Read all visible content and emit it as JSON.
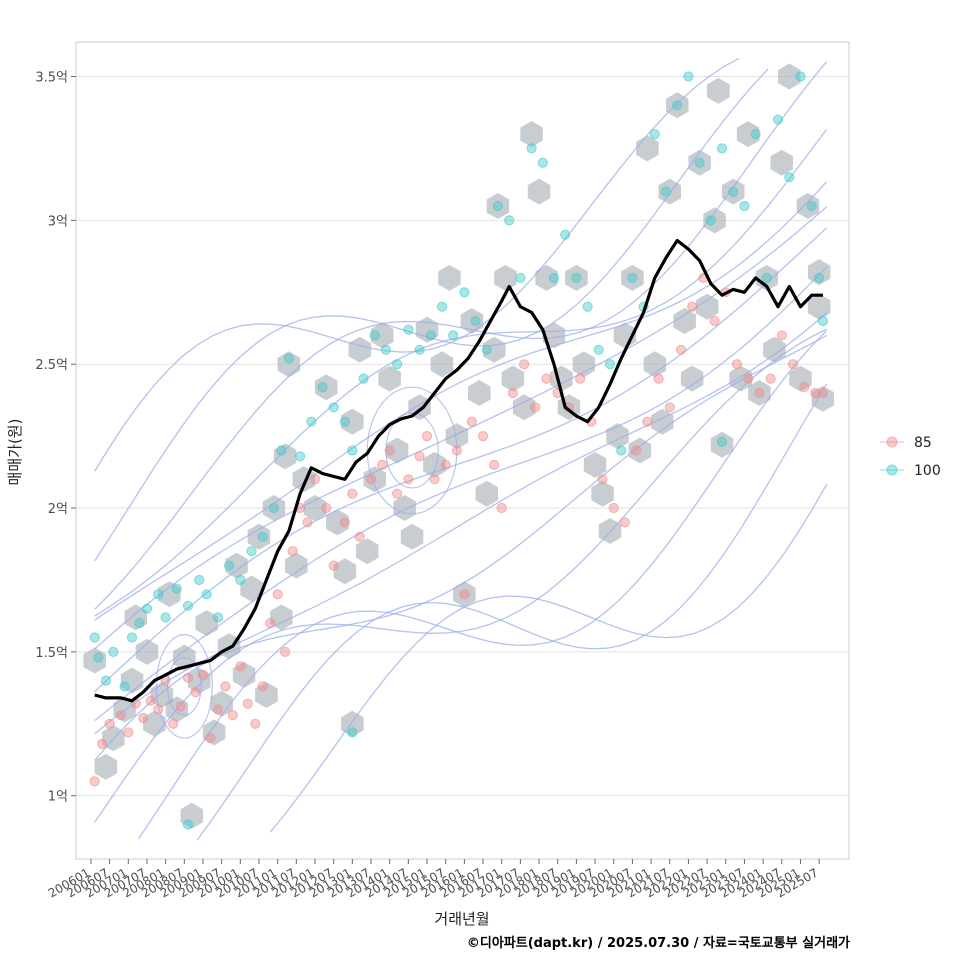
{
  "chart_data": {
    "type": "scatter",
    "xlabel": "거래년월",
    "ylabel": "매매가(원)",
    "caption": "©디아파트(dapt.kr) / 2025.07.30 / 자료=국토교통부 실거래가",
    "x_ticks": [
      "200601",
      "200607",
      "200701",
      "200707",
      "200801",
      "200807",
      "200901",
      "200907",
      "201001",
      "201007",
      "201101",
      "201107",
      "201201",
      "201207",
      "201301",
      "201307",
      "201401",
      "201407",
      "201501",
      "201507",
      "201601",
      "201607",
      "201701",
      "201707",
      "201801",
      "201807",
      "201901",
      "201907",
      "202001",
      "202007",
      "202101",
      "202107",
      "202201",
      "202207",
      "202301",
      "202307",
      "202401",
      "202407",
      "202501",
      "202507"
    ],
    "y_ticks": [
      {
        "value": 1.0,
        "label": "1억"
      },
      {
        "value": 1.5,
        "label": "1.5억"
      },
      {
        "value": 2.0,
        "label": "2억"
      },
      {
        "value": 2.5,
        "label": "2.5억"
      },
      {
        "value": 3.0,
        "label": "3억"
      },
      {
        "value": 3.5,
        "label": "3.5억"
      }
    ],
    "ylim": [
      0.78,
      3.62
    ],
    "xlim": [
      2005.6,
      2026.3
    ],
    "grid": "horizontal",
    "legend_position": "right",
    "colors": {
      "s85": "#f08a8a",
      "s100": "#3ec9c9",
      "trend": "#000000",
      "hex": "#a6aeb6",
      "contour": "#9aaee8"
    },
    "series": [
      {
        "name": "85",
        "points": [
          [
            2006.1,
            1.05
          ],
          [
            2006.3,
            1.18
          ],
          [
            2006.5,
            1.25
          ],
          [
            2006.8,
            1.28
          ],
          [
            2007.0,
            1.22
          ],
          [
            2007.2,
            1.32
          ],
          [
            2007.4,
            1.27
          ],
          [
            2007.6,
            1.33
          ],
          [
            2007.8,
            1.3
          ],
          [
            2008.0,
            1.4
          ],
          [
            2008.2,
            1.25
          ],
          [
            2008.4,
            1.31
          ],
          [
            2008.6,
            1.41
          ],
          [
            2008.8,
            1.36
          ],
          [
            2009.0,
            1.42
          ],
          [
            2009.2,
            1.2
          ],
          [
            2009.4,
            1.3
          ],
          [
            2009.6,
            1.38
          ],
          [
            2009.8,
            1.28
          ],
          [
            2010.0,
            1.45
          ],
          [
            2010.2,
            1.32
          ],
          [
            2010.4,
            1.25
          ],
          [
            2010.6,
            1.38
          ],
          [
            2010.8,
            1.6
          ],
          [
            2011.0,
            1.7
          ],
          [
            2011.2,
            1.5
          ],
          [
            2011.4,
            1.85
          ],
          [
            2011.6,
            2.0
          ],
          [
            2011.8,
            1.95
          ],
          [
            2012.0,
            2.1
          ],
          [
            2012.3,
            2.0
          ],
          [
            2012.5,
            1.8
          ],
          [
            2012.8,
            1.95
          ],
          [
            2013.0,
            2.05
          ],
          [
            2013.2,
            1.9
          ],
          [
            2013.5,
            2.1
          ],
          [
            2013.8,
            2.15
          ],
          [
            2014.0,
            2.2
          ],
          [
            2014.2,
            2.05
          ],
          [
            2014.5,
            2.1
          ],
          [
            2014.8,
            2.18
          ],
          [
            2015.0,
            2.25
          ],
          [
            2015.2,
            2.1
          ],
          [
            2015.5,
            2.15
          ],
          [
            2015.8,
            2.2
          ],
          [
            2016.0,
            1.7
          ],
          [
            2016.2,
            2.3
          ],
          [
            2016.5,
            2.25
          ],
          [
            2016.8,
            2.15
          ],
          [
            2017.0,
            2.0
          ],
          [
            2017.3,
            2.4
          ],
          [
            2017.6,
            2.5
          ],
          [
            2017.9,
            2.35
          ],
          [
            2018.2,
            2.45
          ],
          [
            2018.5,
            2.4
          ],
          [
            2018.8,
            2.35
          ],
          [
            2019.1,
            2.45
          ],
          [
            2019.4,
            2.3
          ],
          [
            2019.7,
            2.1
          ],
          [
            2020.0,
            2.0
          ],
          [
            2020.3,
            1.95
          ],
          [
            2020.6,
            2.2
          ],
          [
            2020.9,
            2.3
          ],
          [
            2021.2,
            2.45
          ],
          [
            2021.5,
            2.35
          ],
          [
            2021.8,
            2.55
          ],
          [
            2022.1,
            2.7
          ],
          [
            2022.4,
            2.8
          ],
          [
            2022.7,
            2.65
          ],
          [
            2023.0,
            2.75
          ],
          [
            2023.3,
            2.5
          ],
          [
            2023.6,
            2.45
          ],
          [
            2023.9,
            2.4
          ],
          [
            2024.2,
            2.45
          ],
          [
            2024.5,
            2.6
          ],
          [
            2024.8,
            2.5
          ],
          [
            2025.1,
            2.42
          ],
          [
            2025.4,
            2.4
          ],
          [
            2025.6,
            2.4
          ]
        ]
      },
      {
        "name": "100",
        "points": [
          [
            2006.1,
            1.55
          ],
          [
            2006.2,
            1.48
          ],
          [
            2006.4,
            1.4
          ],
          [
            2006.6,
            1.5
          ],
          [
            2006.9,
            1.38
          ],
          [
            2007.1,
            1.55
          ],
          [
            2007.3,
            1.6
          ],
          [
            2007.5,
            1.65
          ],
          [
            2007.8,
            1.7
          ],
          [
            2008.0,
            1.62
          ],
          [
            2008.3,
            1.72
          ],
          [
            2008.6,
            1.66
          ],
          [
            2008.9,
            1.75
          ],
          [
            2009.1,
            1.7
          ],
          [
            2009.4,
            1.62
          ],
          [
            2009.7,
            1.8
          ],
          [
            2010.0,
            1.75
          ],
          [
            2010.3,
            1.85
          ],
          [
            2010.6,
            1.9
          ],
          [
            2010.9,
            2.0
          ],
          [
            2011.1,
            2.2
          ],
          [
            2011.3,
            2.52
          ],
          [
            2011.6,
            2.18
          ],
          [
            2011.9,
            2.3
          ],
          [
            2012.2,
            2.42
          ],
          [
            2012.5,
            2.35
          ],
          [
            2012.8,
            2.3
          ],
          [
            2013.0,
            2.2
          ],
          [
            2013.3,
            2.45
          ],
          [
            2013.6,
            2.6
          ],
          [
            2013.9,
            2.55
          ],
          [
            2014.2,
            2.5
          ],
          [
            2014.5,
            2.62
          ],
          [
            2014.8,
            2.55
          ],
          [
            2015.1,
            2.6
          ],
          [
            2015.4,
            2.7
          ],
          [
            2015.7,
            2.6
          ],
          [
            2016.0,
            2.75
          ],
          [
            2016.3,
            2.65
          ],
          [
            2016.6,
            2.55
          ],
          [
            2016.9,
            3.05
          ],
          [
            2017.2,
            3.0
          ],
          [
            2017.5,
            2.8
          ],
          [
            2017.8,
            3.25
          ],
          [
            2018.1,
            3.2
          ],
          [
            2018.4,
            2.8
          ],
          [
            2018.7,
            2.95
          ],
          [
            2019.0,
            2.8
          ],
          [
            2019.3,
            2.7
          ],
          [
            2019.6,
            2.55
          ],
          [
            2019.9,
            2.5
          ],
          [
            2020.2,
            2.2
          ],
          [
            2020.5,
            2.8
          ],
          [
            2020.8,
            2.7
          ],
          [
            2021.1,
            3.3
          ],
          [
            2021.4,
            3.1
          ],
          [
            2021.7,
            3.4
          ],
          [
            2022.0,
            3.5
          ],
          [
            2022.3,
            3.2
          ],
          [
            2022.6,
            3.0
          ],
          [
            2022.9,
            3.25
          ],
          [
            2023.2,
            3.1
          ],
          [
            2023.5,
            3.05
          ],
          [
            2023.8,
            3.3
          ],
          [
            2024.1,
            2.8
          ],
          [
            2024.4,
            3.35
          ],
          [
            2024.7,
            3.15
          ],
          [
            2025.0,
            3.5
          ],
          [
            2025.3,
            3.05
          ],
          [
            2025.5,
            2.8
          ],
          [
            2025.6,
            2.65
          ],
          [
            2013.0,
            1.22
          ],
          [
            2008.6,
            0.9
          ],
          [
            2022.9,
            2.23
          ]
        ]
      }
    ],
    "trend_line": [
      [
        2006.1,
        1.35
      ],
      [
        2006.4,
        1.34
      ],
      [
        2006.8,
        1.34
      ],
      [
        2007.1,
        1.33
      ],
      [
        2007.4,
        1.36
      ],
      [
        2007.7,
        1.4
      ],
      [
        2008.0,
        1.42
      ],
      [
        2008.3,
        1.44
      ],
      [
        2008.6,
        1.45
      ],
      [
        2008.9,
        1.46
      ],
      [
        2009.2,
        1.47
      ],
      [
        2009.5,
        1.5
      ],
      [
        2009.8,
        1.52
      ],
      [
        2010.1,
        1.58
      ],
      [
        2010.4,
        1.65
      ],
      [
        2010.7,
        1.75
      ],
      [
        2011.0,
        1.85
      ],
      [
        2011.3,
        1.92
      ],
      [
        2011.6,
        2.05
      ],
      [
        2011.9,
        2.14
      ],
      [
        2012.2,
        2.12
      ],
      [
        2012.5,
        2.11
      ],
      [
        2012.8,
        2.1
      ],
      [
        2013.1,
        2.16
      ],
      [
        2013.4,
        2.19
      ],
      [
        2013.7,
        2.25
      ],
      [
        2014.0,
        2.29
      ],
      [
        2014.3,
        2.31
      ],
      [
        2014.6,
        2.32
      ],
      [
        2014.9,
        2.35
      ],
      [
        2015.2,
        2.4
      ],
      [
        2015.5,
        2.45
      ],
      [
        2015.8,
        2.48
      ],
      [
        2016.1,
        2.52
      ],
      [
        2016.4,
        2.58
      ],
      [
        2016.7,
        2.65
      ],
      [
        2017.0,
        2.72
      ],
      [
        2017.2,
        2.77
      ],
      [
        2017.5,
        2.7
      ],
      [
        2017.8,
        2.68
      ],
      [
        2018.1,
        2.62
      ],
      [
        2018.4,
        2.5
      ],
      [
        2018.7,
        2.35
      ],
      [
        2019.0,
        2.32
      ],
      [
        2019.3,
        2.3
      ],
      [
        2019.6,
        2.35
      ],
      [
        2019.9,
        2.43
      ],
      [
        2020.2,
        2.52
      ],
      [
        2020.5,
        2.6
      ],
      [
        2020.8,
        2.68
      ],
      [
        2021.1,
        2.8
      ],
      [
        2021.4,
        2.87
      ],
      [
        2021.7,
        2.93
      ],
      [
        2022.0,
        2.9
      ],
      [
        2022.3,
        2.86
      ],
      [
        2022.6,
        2.78
      ],
      [
        2022.9,
        2.74
      ],
      [
        2023.2,
        2.76
      ],
      [
        2023.5,
        2.75
      ],
      [
        2023.8,
        2.8
      ],
      [
        2024.1,
        2.77
      ],
      [
        2024.4,
        2.7
      ],
      [
        2024.7,
        2.77
      ],
      [
        2025.0,
        2.7
      ],
      [
        2025.3,
        2.74
      ],
      [
        2025.6,
        2.74
      ]
    ],
    "hex_cells": [
      [
        2006.1,
        1.47
      ],
      [
        2006.4,
        1.1
      ],
      [
        2006.6,
        1.2
      ],
      [
        2006.9,
        1.3
      ],
      [
        2007.1,
        1.4
      ],
      [
        2007.2,
        1.62
      ],
      [
        2007.5,
        1.5
      ],
      [
        2007.7,
        1.25
      ],
      [
        2007.9,
        1.35
      ],
      [
        2008.1,
        1.7
      ],
      [
        2008.3,
        1.3
      ],
      [
        2008.5,
        1.48
      ],
      [
        2008.7,
        0.93
      ],
      [
        2008.9,
        1.4
      ],
      [
        2009.1,
        1.6
      ],
      [
        2009.3,
        1.22
      ],
      [
        2009.5,
        1.32
      ],
      [
        2009.7,
        1.52
      ],
      [
        2009.9,
        1.8
      ],
      [
        2010.1,
        1.42
      ],
      [
        2010.3,
        1.72
      ],
      [
        2010.5,
        1.9
      ],
      [
        2010.7,
        1.35
      ],
      [
        2010.9,
        2.0
      ],
      [
        2011.1,
        1.62
      ],
      [
        2011.2,
        2.18
      ],
      [
        2011.3,
        2.5
      ],
      [
        2011.5,
        1.8
      ],
      [
        2011.7,
        2.1
      ],
      [
        2012.0,
        2.0
      ],
      [
        2012.3,
        2.42
      ],
      [
        2012.6,
        1.95
      ],
      [
        2012.8,
        1.78
      ],
      [
        2013.0,
        2.3
      ],
      [
        2013.2,
        2.55
      ],
      [
        2013.4,
        1.85
      ],
      [
        2013.6,
        2.1
      ],
      [
        2013.8,
        2.6
      ],
      [
        2014.0,
        2.45
      ],
      [
        2014.2,
        2.2
      ],
      [
        2014.4,
        2.0
      ],
      [
        2014.6,
        1.9
      ],
      [
        2014.8,
        2.35
      ],
      [
        2015.0,
        2.62
      ],
      [
        2015.2,
        2.15
      ],
      [
        2015.4,
        2.5
      ],
      [
        2015.6,
        2.8
      ],
      [
        2015.8,
        2.25
      ],
      [
        2016.0,
        1.7
      ],
      [
        2016.2,
        2.65
      ],
      [
        2016.4,
        2.4
      ],
      [
        2016.6,
        2.05
      ],
      [
        2016.8,
        2.55
      ],
      [
        2016.9,
        3.05
      ],
      [
        2017.1,
        2.8
      ],
      [
        2017.3,
        2.45
      ],
      [
        2017.6,
        2.35
      ],
      [
        2017.8,
        3.3
      ],
      [
        2018.0,
        3.1
      ],
      [
        2018.2,
        2.8
      ],
      [
        2018.4,
        2.6
      ],
      [
        2018.6,
        2.45
      ],
      [
        2018.8,
        2.35
      ],
      [
        2019.0,
        2.8
      ],
      [
        2019.2,
        2.5
      ],
      [
        2019.5,
        2.15
      ],
      [
        2019.7,
        2.05
      ],
      [
        2019.9,
        1.92
      ],
      [
        2020.1,
        2.25
      ],
      [
        2020.3,
        2.6
      ],
      [
        2020.5,
        2.8
      ],
      [
        2020.7,
        2.2
      ],
      [
        2020.9,
        3.25
      ],
      [
        2021.1,
        2.5
      ],
      [
        2021.3,
        2.3
      ],
      [
        2021.5,
        3.1
      ],
      [
        2021.7,
        3.4
      ],
      [
        2021.9,
        2.65
      ],
      [
        2022.1,
        2.45
      ],
      [
        2022.3,
        3.2
      ],
      [
        2022.5,
        2.7
      ],
      [
        2022.7,
        3.0
      ],
      [
        2022.8,
        3.45
      ],
      [
        2022.9,
        2.22
      ],
      [
        2023.2,
        3.1
      ],
      [
        2023.4,
        2.45
      ],
      [
        2023.6,
        3.3
      ],
      [
        2023.9,
        2.4
      ],
      [
        2024.1,
        2.8
      ],
      [
        2024.3,
        2.55
      ],
      [
        2024.5,
        3.2
      ],
      [
        2024.7,
        3.5
      ],
      [
        2025.0,
        2.45
      ],
      [
        2025.2,
        3.05
      ],
      [
        2025.5,
        2.7
      ],
      [
        2025.6,
        2.38
      ],
      [
        2013.0,
        1.25
      ],
      [
        2025.5,
        2.82
      ]
    ]
  }
}
